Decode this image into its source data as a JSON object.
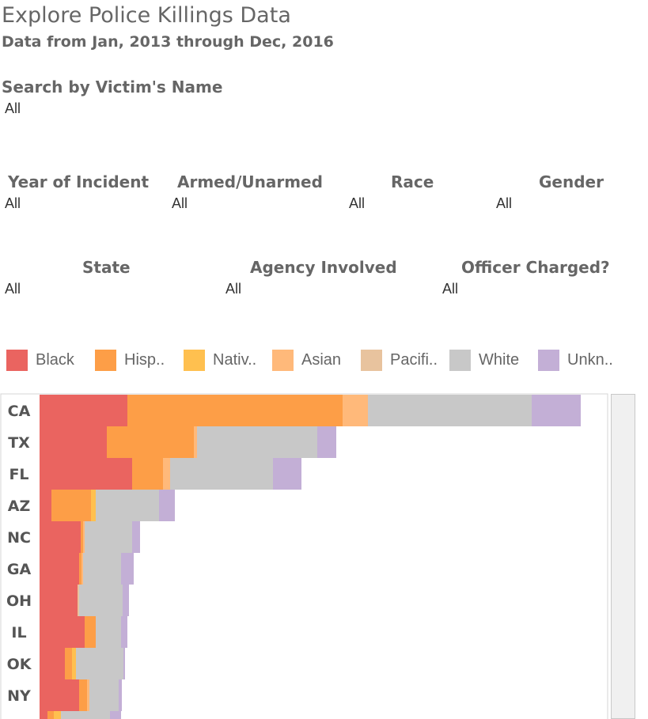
{
  "header": {
    "title": "Explore Police Killings Data",
    "subtitle": "Data from Jan, 2013 through Dec, 2016"
  },
  "filters": {
    "victim_name": {
      "label": "Search by Victim's Name",
      "value": "All"
    },
    "year": {
      "label": "Year of Incident",
      "value": "All"
    },
    "armed": {
      "label": "Armed/Unarmed",
      "value": "All"
    },
    "race": {
      "label": "Race",
      "value": "All"
    },
    "gender": {
      "label": "Gender",
      "value": "All"
    },
    "state": {
      "label": "State",
      "value": "All"
    },
    "agency": {
      "label": "Agency Involved",
      "value": "All"
    },
    "officer_charged": {
      "label": "Officer Charged?",
      "value": "All"
    }
  },
  "legend": [
    {
      "label": "Black",
      "color": "#ea6460"
    },
    {
      "label": "Hisp..",
      "color": "#fd9e47"
    },
    {
      "label": "Nativ..",
      "color": "#ffc04f"
    },
    {
      "label": "Asian",
      "color": "#ffb97a"
    },
    {
      "label": "Pacifi..",
      "color": "#e8c39e"
    },
    {
      "label": "White",
      "color": "#c8c8c8"
    },
    {
      "label": "Unkn..",
      "color": "#c3afd6"
    }
  ],
  "chart_data": {
    "type": "bar",
    "orientation": "horizontal",
    "stacked": true,
    "categories": [
      "CA",
      "TX",
      "FL",
      "AZ",
      "NC",
      "GA",
      "OH",
      "IL",
      "OK",
      "NY"
    ],
    "series": [
      {
        "name": "Black",
        "color": "#ea6460",
        "values": [
          111,
          85,
          117,
          15,
          52,
          50,
          48,
          57,
          32,
          50
        ]
      },
      {
        "name": "Hisp..",
        "color": "#fd9e47",
        "values": [
          272,
          110,
          39,
          50,
          3,
          3,
          0,
          14,
          9,
          10
        ]
      },
      {
        "name": "Nativ..",
        "color": "#ffc04f",
        "values": [
          0,
          0,
          0,
          6,
          0,
          0,
          0,
          0,
          5,
          0
        ]
      },
      {
        "name": "Asian",
        "color": "#ffb97a",
        "values": [
          32,
          4,
          9,
          0,
          2,
          2,
          0,
          0,
          0,
          3
        ]
      },
      {
        "name": "Pacifi..",
        "color": "#e8c39e",
        "values": [
          0,
          0,
          0,
          0,
          0,
          0,
          2,
          0,
          0,
          0
        ]
      },
      {
        "name": "White",
        "color": "#c8c8c8",
        "values": [
          207,
          152,
          130,
          80,
          60,
          48,
          55,
          32,
          60,
          37
        ]
      },
      {
        "name": "Unkn..",
        "color": "#c3afd6",
        "values": [
          62,
          24,
          36,
          20,
          10,
          16,
          8,
          8,
          2,
          4
        ]
      }
    ],
    "partial_row": {
      "series_values": [
        10,
        8,
        9,
        0,
        0,
        62,
        14
      ]
    },
    "xlim": [
      0,
      720
    ],
    "grid": false,
    "legend_position": "top"
  }
}
